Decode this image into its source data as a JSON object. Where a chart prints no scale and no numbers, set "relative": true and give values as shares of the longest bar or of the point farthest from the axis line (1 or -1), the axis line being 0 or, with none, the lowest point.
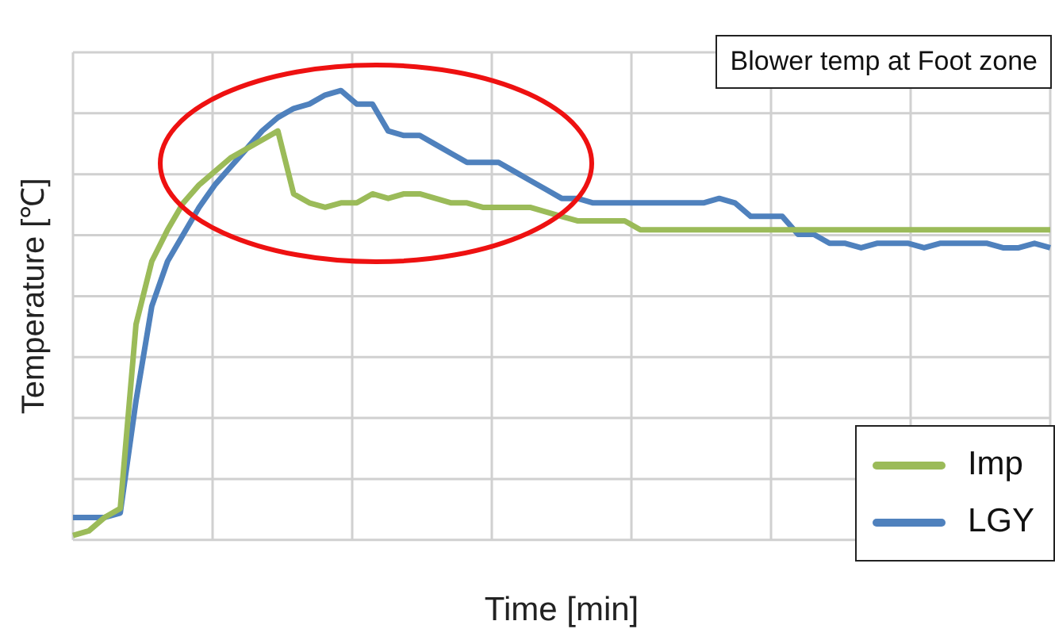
{
  "chart_data": {
    "type": "line",
    "relative": true,
    "title": "Blower temp at Foot zone",
    "xlabel": "Time [min]",
    "ylabel": "Temperature [℃]",
    "grid": true,
    "legend": "bottom right",
    "marker": "none",
    "line_style": "solid",
    "categories": [
      null,
      null,
      null,
      null,
      null,
      null,
      null,
      null,
      null,
      null,
      null,
      null,
      null,
      null,
      null,
      null,
      null,
      null,
      null,
      null,
      null,
      null,
      null,
      null,
      null,
      null,
      null,
      null,
      null,
      null,
      null,
      null,
      null,
      null,
      null,
      null,
      null,
      null,
      null,
      null,
      null,
      null,
      null,
      null,
      null,
      null,
      null,
      null,
      null,
      null,
      null,
      null,
      null,
      null,
      null,
      null,
      null,
      null,
      null,
      null,
      null,
      null,
      null
    ],
    "series": [
      {
        "name": "Imp",
        "color": "#9bbb59",
        "values": [
          0.01,
          0.02,
          0.05,
          0.07,
          0.48,
          0.62,
          0.69,
          0.75,
          0.79,
          0.82,
          0.85,
          0.87,
          0.89,
          0.91,
          0.77,
          0.75,
          0.74,
          0.75,
          0.75,
          0.77,
          0.76,
          0.77,
          0.77,
          0.76,
          0.75,
          0.75,
          0.74,
          0.74,
          0.74,
          0.74,
          0.73,
          0.72,
          0.71,
          0.71,
          0.71,
          0.71,
          0.69,
          0.69,
          0.69,
          0.69,
          0.69,
          0.69,
          0.69,
          0.69,
          0.69,
          0.69,
          0.69,
          0.69,
          0.69,
          0.69,
          0.69,
          0.69,
          0.69,
          0.69,
          0.69,
          0.69,
          0.69,
          0.69,
          0.69,
          0.69,
          0.69,
          0.69,
          0.69
        ]
      },
      {
        "name": "LGY",
        "color": "#4f81bd",
        "values": [
          0.05,
          0.05,
          0.05,
          0.06,
          0.31,
          0.52,
          0.62,
          0.68,
          0.74,
          0.79,
          0.83,
          0.87,
          0.91,
          0.94,
          0.96,
          0.97,
          0.99,
          1.0,
          0.97,
          0.97,
          0.91,
          0.9,
          0.9,
          0.88,
          0.86,
          0.84,
          0.84,
          0.84,
          0.82,
          0.8,
          0.78,
          0.76,
          0.76,
          0.75,
          0.75,
          0.75,
          0.75,
          0.75,
          0.75,
          0.75,
          0.75,
          0.76,
          0.75,
          0.72,
          0.72,
          0.72,
          0.68,
          0.68,
          0.66,
          0.66,
          0.65,
          0.66,
          0.66,
          0.66,
          0.65,
          0.66,
          0.66,
          0.66,
          0.66,
          0.65,
          0.65,
          0.66,
          0.65
        ]
      }
    ]
  }
}
